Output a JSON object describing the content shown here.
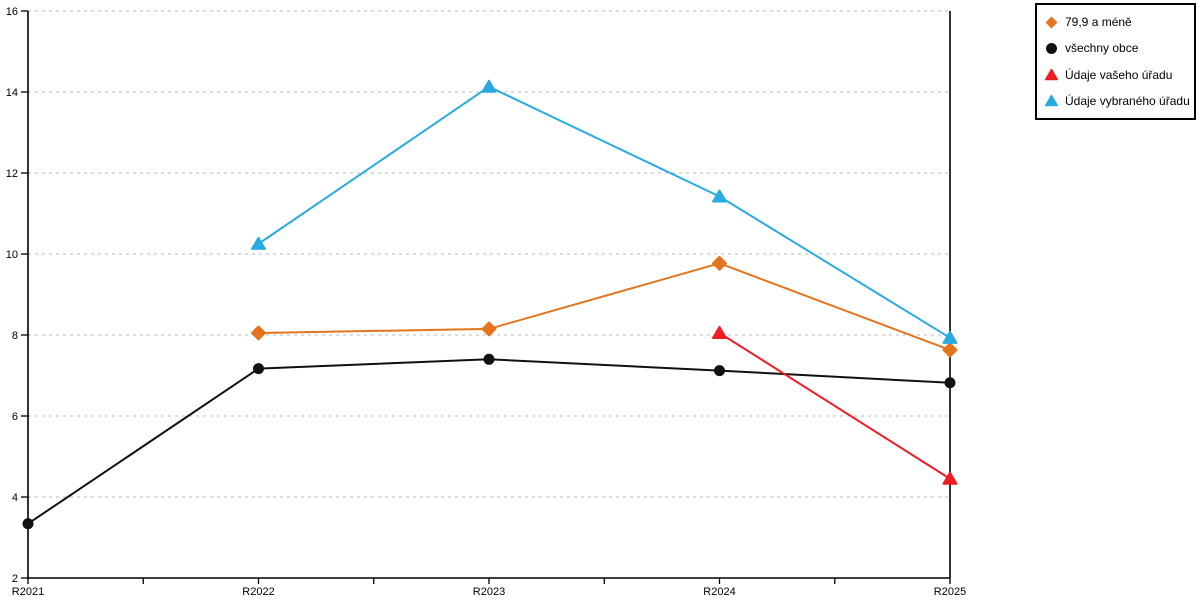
{
  "chart_data": {
    "type": "line",
    "categories": [
      "R2021",
      "R2022",
      "R2023",
      "R2024",
      "R2025"
    ],
    "ylim": [
      2,
      16
    ],
    "yticks": [
      2,
      4,
      6,
      8,
      10,
      12,
      14,
      16
    ],
    "grid": "horizontal dashed, at every y tick above axis",
    "minor_x_ticks": "midpoints between categories",
    "legend_position": "outside top-right, boxed",
    "axis_color": "#000000",
    "grid_color": "#c8c8c8",
    "background": "#ffffff",
    "series": [
      {
        "name": "79,9 a méně",
        "color": "#e2751d",
        "marker": "diamond",
        "values": [
          null,
          8.05,
          8.15,
          9.77,
          7.63
        ]
      },
      {
        "name": "všechny obce",
        "color": "#111111",
        "marker": "circle",
        "values": [
          3.34,
          7.17,
          7.4,
          7.12,
          6.82
        ]
      },
      {
        "name": "Údaje vašeho úřadu",
        "color": "#ee1c23",
        "marker": "triangle",
        "values": [
          null,
          null,
          null,
          8.05,
          4.45
        ]
      },
      {
        "name": "Údaje vybraného úřadu",
        "color": "#29abe2",
        "marker": "triangle",
        "values": [
          null,
          10.25,
          14.13,
          11.42,
          7.93
        ]
      }
    ]
  }
}
